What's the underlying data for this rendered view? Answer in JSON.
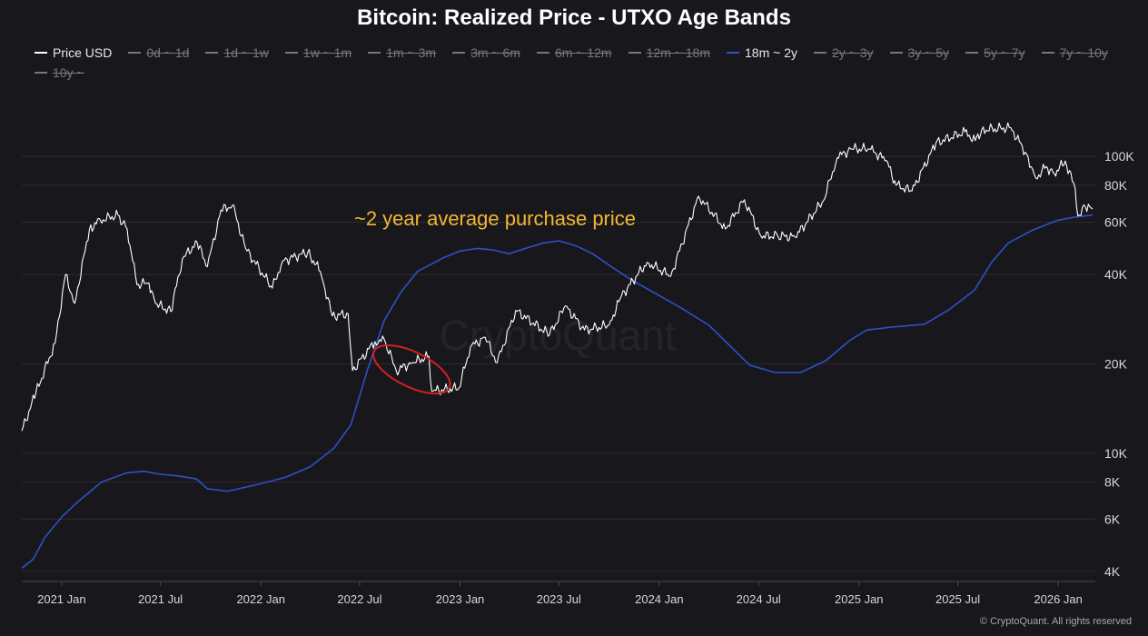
{
  "chart_data": {
    "type": "line",
    "title": "Bitcoin: Realized Price - UTXO Age Bands",
    "legend": {
      "placement": "top",
      "items": [
        {
          "label": "Price USD",
          "enabled": true,
          "color": "#ffffff"
        },
        {
          "label": "0d ~ 1d",
          "enabled": false
        },
        {
          "label": "1d ~ 1w",
          "enabled": false
        },
        {
          "label": "1w ~ 1m",
          "enabled": false
        },
        {
          "label": "1m ~ 3m",
          "enabled": false
        },
        {
          "label": "3m ~ 6m",
          "enabled": false
        },
        {
          "label": "6m ~ 12m",
          "enabled": false
        },
        {
          "label": "12m ~ 18m",
          "enabled": false
        },
        {
          "label": "18m ~ 2y",
          "enabled": true,
          "color": "#2e50c8"
        },
        {
          "label": "2y ~ 3y",
          "enabled": false
        },
        {
          "label": "3y ~ 5y",
          "enabled": false
        },
        {
          "label": "5y ~ 7y",
          "enabled": false
        },
        {
          "label": "7y ~ 10y",
          "enabled": false
        },
        {
          "label": "10y ~",
          "enabled": false
        }
      ]
    },
    "y_scale": "log",
    "y_range": [
      3700,
      155000
    ],
    "y_ticks": [
      {
        "value": 4000,
        "label": "4K"
      },
      {
        "value": 6000,
        "label": "6K"
      },
      {
        "value": 8000,
        "label": "8K"
      },
      {
        "value": 10000,
        "label": "10K"
      },
      {
        "value": 20000,
        "label": "20K"
      },
      {
        "value": 40000,
        "label": "40K"
      },
      {
        "value": 60000,
        "label": "60K"
      },
      {
        "value": 80000,
        "label": "80K"
      },
      {
        "value": 100000,
        "label": "100K"
      }
    ],
    "x_range": [
      "2020-10-20",
      "2026-03-10"
    ],
    "x_ticks": [
      {
        "value": "2021-01-01",
        "label": "2021 Jan"
      },
      {
        "value": "2021-07-01",
        "label": "2021 Jul"
      },
      {
        "value": "2022-01-01",
        "label": "2022 Jan"
      },
      {
        "value": "2022-07-01",
        "label": "2022 Jul"
      },
      {
        "value": "2023-01-01",
        "label": "2023 Jan"
      },
      {
        "value": "2023-07-01",
        "label": "2023 Jul"
      },
      {
        "value": "2024-01-01",
        "label": "2024 Jan"
      },
      {
        "value": "2024-07-01",
        "label": "2024 Jul"
      },
      {
        "value": "2025-01-01",
        "label": "2025 Jan"
      },
      {
        "value": "2025-07-01",
        "label": "2025 Jul"
      },
      {
        "value": "2026-01-01",
        "label": "2026 Jan"
      }
    ],
    "grid": {
      "horizontal": true,
      "vertical": false
    },
    "series": [
      {
        "name": "Price USD",
        "color": "#ffffff",
        "points": [
          [
            "2020-10-20",
            11900
          ],
          [
            "2020-11-15",
            16000
          ],
          [
            "2020-12-20",
            23500
          ],
          [
            "2021-01-08",
            40000
          ],
          [
            "2021-01-25",
            32000
          ],
          [
            "2021-02-21",
            57000
          ],
          [
            "2021-03-13",
            61000
          ],
          [
            "2021-04-14",
            63500
          ],
          [
            "2021-05-01",
            57000
          ],
          [
            "2021-05-19",
            37000
          ],
          [
            "2021-06-10",
            37500
          ],
          [
            "2021-06-22",
            32000
          ],
          [
            "2021-07-20",
            30000
          ],
          [
            "2021-08-10",
            45000
          ],
          [
            "2021-09-06",
            51500
          ],
          [
            "2021-09-25",
            42500
          ],
          [
            "2021-10-20",
            66000
          ],
          [
            "2021-11-10",
            68500
          ],
          [
            "2021-12-04",
            49000
          ],
          [
            "2022-01-22",
            36000
          ],
          [
            "2022-02-10",
            44500
          ],
          [
            "2022-03-28",
            47500
          ],
          [
            "2022-04-20",
            41000
          ],
          [
            "2022-05-12",
            29000
          ],
          [
            "2022-06-10",
            29500
          ],
          [
            "2022-06-18",
            19000
          ],
          [
            "2022-07-29",
            23800
          ],
          [
            "2022-08-15",
            24200
          ],
          [
            "2022-09-06",
            19000
          ],
          [
            "2022-10-05",
            20200
          ],
          [
            "2022-11-05",
            21200
          ],
          [
            "2022-11-10",
            16200
          ],
          [
            "2022-12-30",
            16600
          ],
          [
            "2023-01-20",
            22800
          ],
          [
            "2023-02-16",
            24600
          ],
          [
            "2023-03-10",
            20200
          ],
          [
            "2023-04-13",
            30300
          ],
          [
            "2023-06-14",
            25100
          ],
          [
            "2023-07-13",
            31400
          ],
          [
            "2023-08-17",
            26000
          ],
          [
            "2023-10-01",
            27000
          ],
          [
            "2023-10-24",
            34000
          ],
          [
            "2023-12-10",
            44000
          ],
          [
            "2024-01-22",
            39500
          ],
          [
            "2024-03-13",
            73500
          ],
          [
            "2024-05-01",
            57000
          ],
          [
            "2024-06-05",
            71500
          ],
          [
            "2024-07-05",
            54000
          ],
          [
            "2024-08-05",
            54000
          ],
          [
            "2024-09-06",
            53500
          ],
          [
            "2024-10-28",
            71000
          ],
          [
            "2024-11-22",
            99000
          ],
          [
            "2024-12-17",
            106000
          ],
          [
            "2025-01-20",
            106000
          ],
          [
            "2025-02-20",
            97000
          ],
          [
            "2025-03-10",
            80000
          ],
          [
            "2025-04-08",
            76500
          ],
          [
            "2025-05-22",
            111000
          ],
          [
            "2025-07-14",
            121000
          ],
          [
            "2025-08-02",
            113000
          ],
          [
            "2025-08-14",
            123000
          ],
          [
            "2025-10-06",
            125000
          ],
          [
            "2025-11-04",
            102000
          ],
          [
            "2025-11-21",
            84500
          ],
          [
            "2025-12-10",
            92500
          ],
          [
            "2025-12-25",
            87500
          ],
          [
            "2026-01-14",
            96500
          ],
          [
            "2026-02-01",
            78000
          ],
          [
            "2026-02-06",
            63000
          ],
          [
            "2026-02-20",
            67500
          ],
          [
            "2026-03-05",
            66500
          ]
        ]
      },
      {
        "name": "18m ~ 2y",
        "color": "#2e50c8",
        "points": [
          [
            "2020-10-20",
            4100
          ],
          [
            "2020-11-10",
            4400
          ],
          [
            "2020-12-01",
            5200
          ],
          [
            "2021-01-01",
            6100
          ],
          [
            "2021-02-01",
            6900
          ],
          [
            "2021-03-15",
            8000
          ],
          [
            "2021-05-01",
            8600
          ],
          [
            "2021-06-01",
            8700
          ],
          [
            "2021-07-01",
            8500
          ],
          [
            "2021-08-01",
            8400
          ],
          [
            "2021-09-05",
            8200
          ],
          [
            "2021-09-25",
            7600
          ],
          [
            "2021-11-01",
            7450
          ],
          [
            "2022-01-01",
            7900
          ],
          [
            "2022-02-15",
            8300
          ],
          [
            "2022-04-01",
            9000
          ],
          [
            "2022-05-15",
            10400
          ],
          [
            "2022-06-15",
            12500
          ],
          [
            "2022-07-15",
            19000
          ],
          [
            "2022-08-15",
            28000
          ],
          [
            "2022-09-15",
            35000
          ],
          [
            "2022-10-15",
            41000
          ],
          [
            "2022-12-01",
            45500
          ],
          [
            "2023-01-01",
            48000
          ],
          [
            "2023-02-01",
            49000
          ],
          [
            "2023-03-01",
            48500
          ],
          [
            "2023-04-01",
            47000
          ],
          [
            "2023-05-01",
            49000
          ],
          [
            "2023-06-01",
            51000
          ],
          [
            "2023-07-01",
            52000
          ],
          [
            "2023-08-01",
            50000
          ],
          [
            "2023-09-01",
            47000
          ],
          [
            "2023-10-01",
            43000
          ],
          [
            "2023-11-15",
            38000
          ],
          [
            "2024-01-01",
            34000
          ],
          [
            "2024-02-15",
            30500
          ],
          [
            "2024-04-01",
            27000
          ],
          [
            "2024-05-15",
            22500
          ],
          [
            "2024-06-15",
            19800
          ],
          [
            "2024-08-01",
            18700
          ],
          [
            "2024-09-15",
            18700
          ],
          [
            "2024-11-01",
            20500
          ],
          [
            "2024-12-15",
            24000
          ],
          [
            "2025-01-15",
            26000
          ],
          [
            "2025-03-01",
            26600
          ],
          [
            "2025-05-01",
            27200
          ],
          [
            "2025-06-15",
            30500
          ],
          [
            "2025-08-01",
            35500
          ],
          [
            "2025-09-01",
            44000
          ],
          [
            "2025-10-01",
            51000
          ],
          [
            "2025-11-15",
            56500
          ],
          [
            "2026-01-01",
            61000
          ],
          [
            "2026-02-01",
            62500
          ],
          [
            "2026-03-05",
            63500
          ]
        ]
      }
    ],
    "annotations": [
      {
        "text": "~2 year average purchase price",
        "color": "#f3b634"
      },
      {
        "type": "ellipse",
        "from": "2022-07-20",
        "to": "2022-12-20",
        "y_low": 15000,
        "y_high": 24500,
        "color": "#d42020"
      }
    ]
  },
  "watermark": "CryptoQuant",
  "credit": "© CryptoQuant. All rights reserved"
}
